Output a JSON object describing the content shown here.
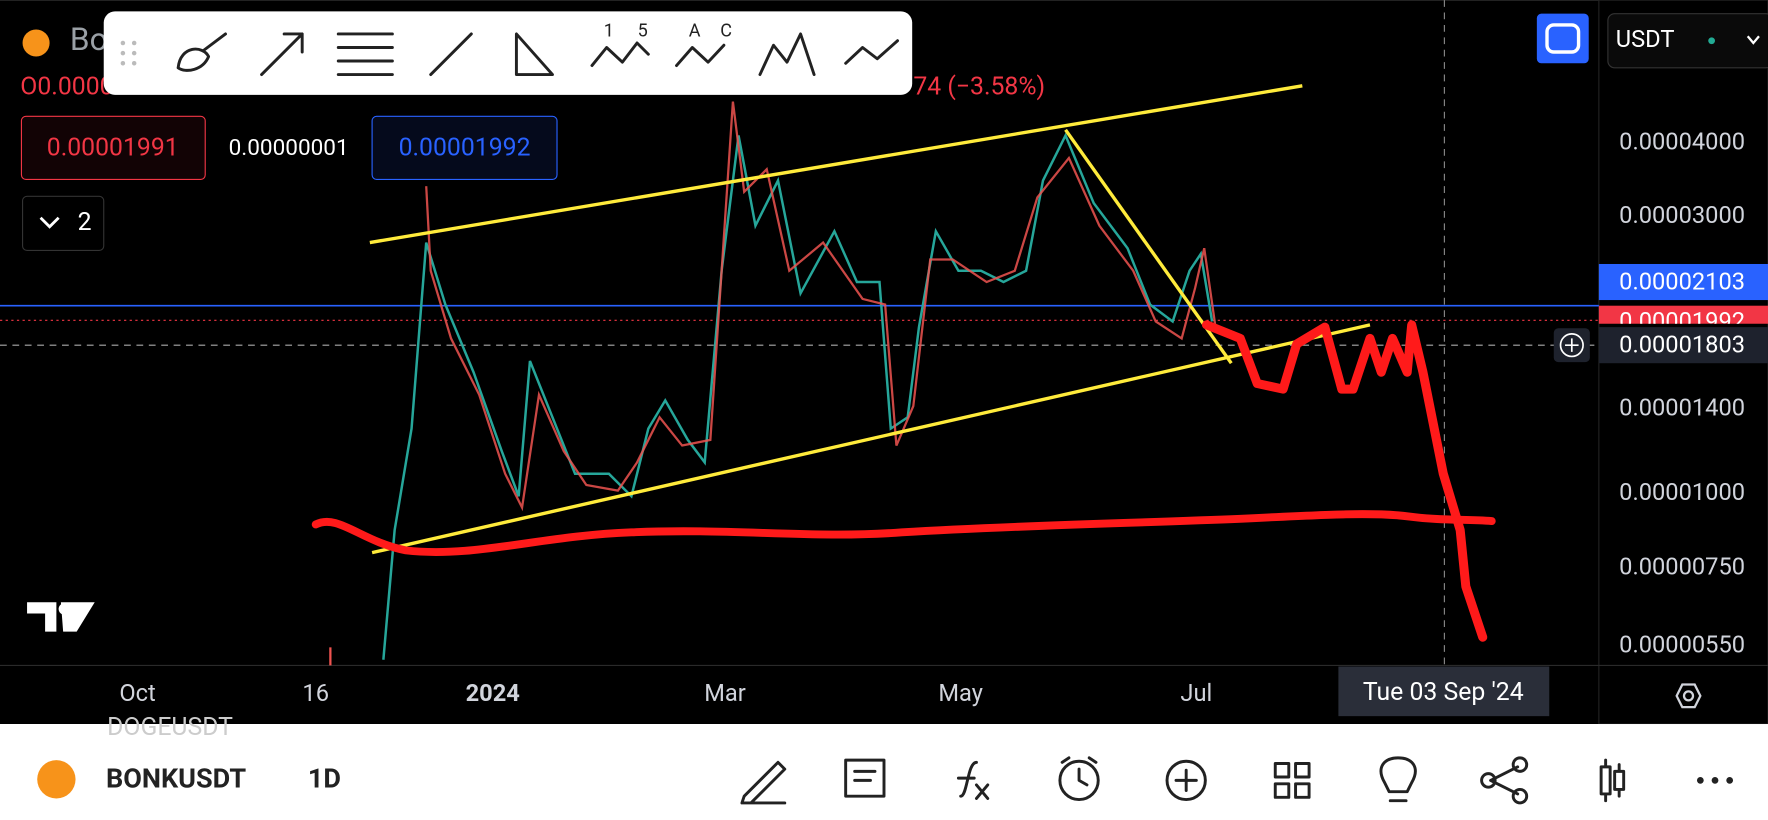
{
  "header": {
    "symbol_partial": "Bo",
    "ohlc_partial": "O0.0000",
    "change": "74 (−3.58%)"
  },
  "toolbar": {
    "labels": [
      "1",
      "5",
      "A",
      "C"
    ]
  },
  "order_boxes": [
    "0.00001991",
    "0.00000001",
    "0.00001992"
  ],
  "indicator_toggle": "2",
  "currency": "USDT",
  "price_axis": [
    "0.00004000",
    "0.00003000",
    "0.00002103",
    "0.00001992",
    "0.00001803",
    "0.00001400",
    "0.00001000",
    "0.00000750",
    "0.00000550"
  ],
  "time_axis": [
    "Oct",
    "16",
    "2024",
    "Mar",
    "May",
    "Jul"
  ],
  "crosshair_date": "Tue 03 Sep '24",
  "bottom_bar": {
    "faded_symbol": "DOGEUSDT",
    "symbol": "BONKUSDT",
    "interval": "1D"
  }
}
